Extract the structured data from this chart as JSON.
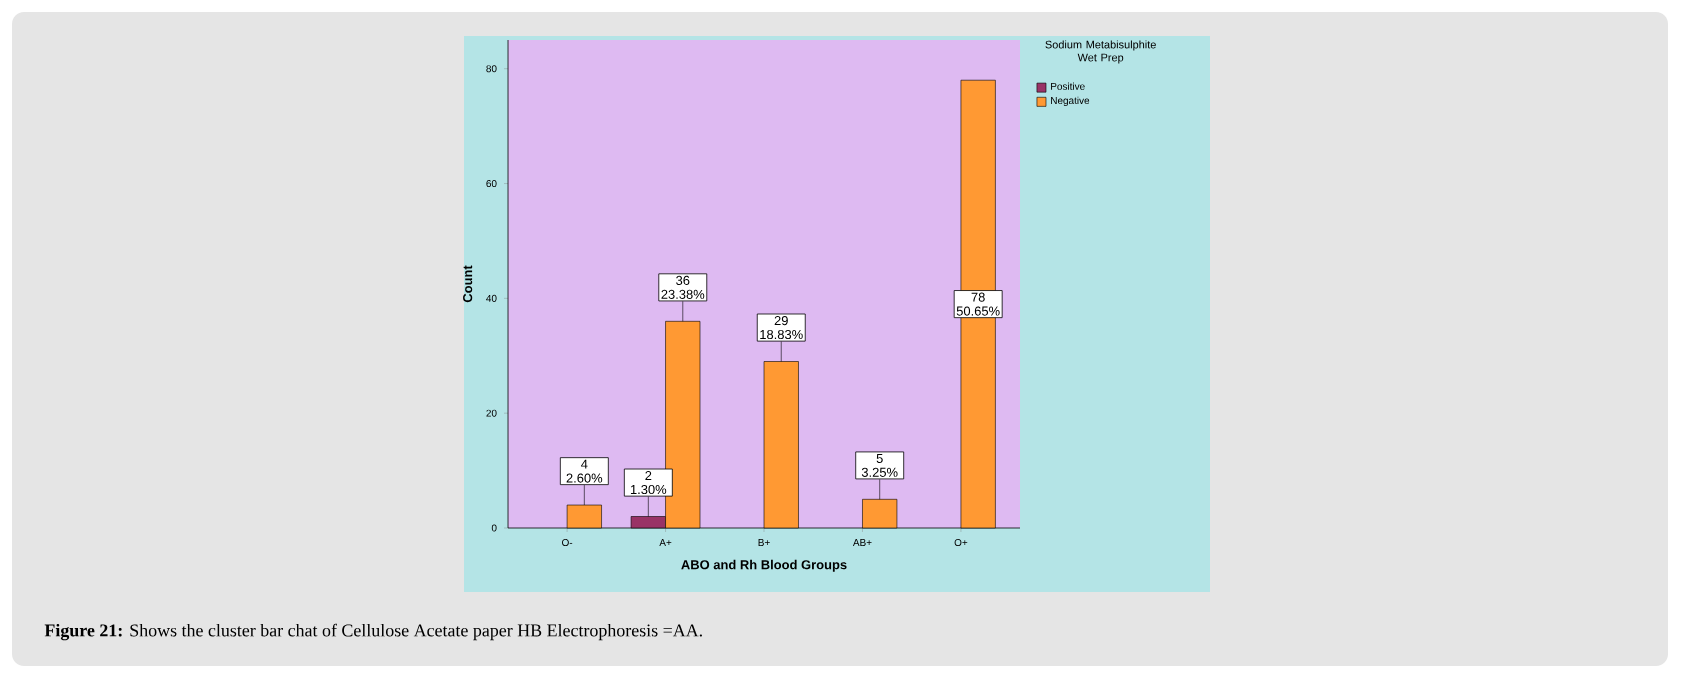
{
  "chart_data": {
    "type": "bar",
    "xlabel": "ABO and Rh Blood Groups",
    "ylabel": "Count",
    "legend_title": "Sodium Metabisulphite Wet Prep",
    "categories": [
      "O-",
      "A+",
      "B+",
      "AB+",
      "O+"
    ],
    "series": [
      {
        "name": "Positive",
        "color": "#993366",
        "values": [
          null,
          2,
          null,
          null,
          null
        ],
        "value_labels": [
          null,
          "2 1.30%",
          null,
          null,
          null
        ]
      },
      {
        "name": "Negative",
        "color": "#ff9933",
        "values": [
          4,
          36,
          29,
          5,
          78
        ],
        "value_labels": [
          "4 2.60%",
          "36 23.38%",
          "29 18.83%",
          "5 3.25%",
          "78 50.65%"
        ]
      }
    ],
    "ylim": [
      0,
      85
    ],
    "yticks": [
      0,
      20,
      40,
      60,
      80
    ],
    "grid": false,
    "legend": "top right",
    "annotations": [
      "**Figure 21:** Shows the cluster bar chat of Cellulose Acetate paper HB Electrophoresis =AA."
    ]
  }
}
